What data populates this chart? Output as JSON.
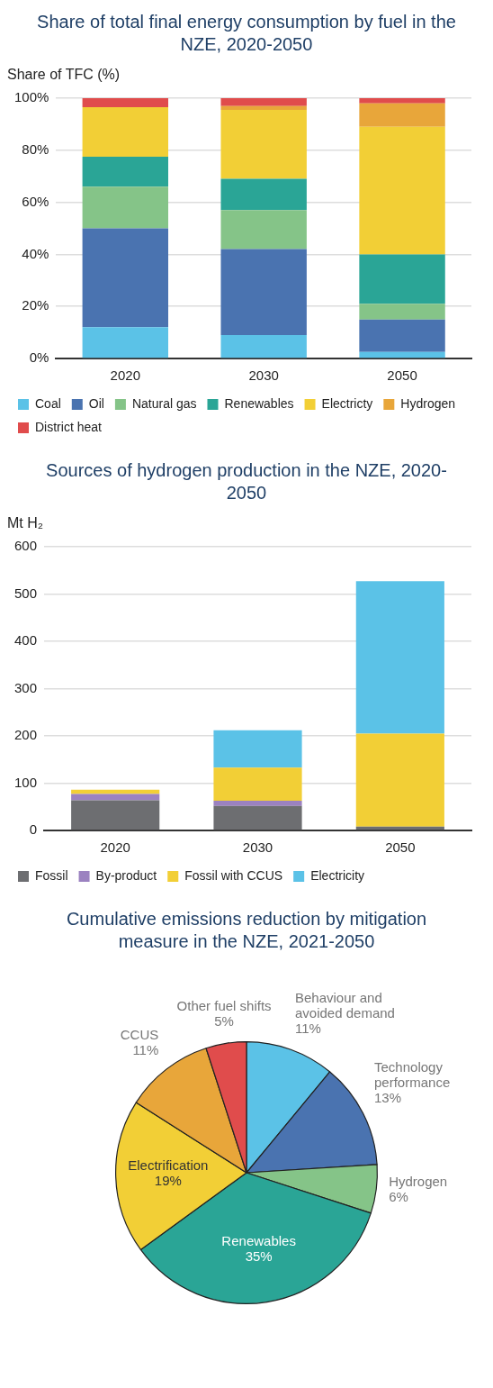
{
  "chart_data": [
    {
      "type": "bar",
      "title": "Share of total final energy consumption by fuel in the NZE, 2020-2050",
      "ylabel": "Share of TFC (%)",
      "categories": [
        "2020",
        "2030",
        "2050"
      ],
      "stacked": true,
      "ylim": [
        0,
        100
      ],
      "yticks": [
        {
          "value": 0,
          "label": "0%"
        },
        {
          "value": 20,
          "label": "20%"
        },
        {
          "value": 40,
          "label": "40%"
        },
        {
          "value": 60,
          "label": "60%"
        },
        {
          "value": 80,
          "label": "80%"
        },
        {
          "value": 100,
          "label": "100%"
        }
      ],
      "grid": "y",
      "legend": "bottom",
      "series": [
        {
          "name": "Coal",
          "color": "#5bc2e7",
          "values": [
            12,
            9,
            2.5
          ]
        },
        {
          "name": "Oil",
          "color": "#4a73b0",
          "values": [
            38,
            33,
            12.5
          ]
        },
        {
          "name": "Natural gas",
          "color": "#85c488",
          "values": [
            16,
            15,
            6
          ]
        },
        {
          "name": "Renewables",
          "color": "#2aa596",
          "values": [
            11.5,
            12,
            19
          ]
        },
        {
          "name": "Electricty",
          "color": "#f2cf36",
          "values": [
            19,
            26.5,
            49
          ]
        },
        {
          "name": "Hydrogen",
          "color": "#e8a63a",
          "values": [
            0,
            1.5,
            9
          ]
        },
        {
          "name": "District heat",
          "color": "#e04c4c",
          "values": [
            3.5,
            3,
            2
          ]
        }
      ]
    },
    {
      "type": "bar",
      "title": "Sources of hydrogen production in the NZE, 2020-2050",
      "ylabel": "Mt H₂",
      "categories": [
        "2020",
        "2030",
        "2050"
      ],
      "stacked": true,
      "ylim": [
        0,
        600
      ],
      "yticks": [
        0,
        100,
        200,
        300,
        400,
        500,
        600
      ],
      "grid": "y",
      "legend": "bottom",
      "series": [
        {
          "name": "Fossil",
          "color": "#6d6e71",
          "values": [
            64,
            52,
            8
          ]
        },
        {
          "name": "By-product",
          "color": "#9b82c0",
          "values": [
            13,
            11,
            0
          ]
        },
        {
          "name": "Fossil with CCUS",
          "color": "#f2cf36",
          "values": [
            9,
            70,
            197
          ]
        },
        {
          "name": "Electricity",
          "color": "#5bc2e7",
          "values": [
            null,
            79,
            322
          ]
        }
      ]
    },
    {
      "type": "pie",
      "title": "Cumulative emissions reduction by mitigation measure in the NZE, 2021-2050",
      "categories": [
        "Behaviour and avoided demand",
        "Technology performance",
        "Hydrogen",
        "Renewables",
        "Electrification",
        "CCUS",
        "Other fuel shifts"
      ],
      "values": [
        11,
        13,
        6,
        35,
        19,
        11,
        5
      ],
      "value_labels": [
        "11%",
        "13%",
        "6%",
        "35%",
        "19%",
        "11%",
        "5%"
      ],
      "colors": [
        "#5bc2e7",
        "#4a73b0",
        "#85c488",
        "#2aa596",
        "#f2cf36",
        "#e8a63a",
        "#e04c4c"
      ]
    }
  ]
}
